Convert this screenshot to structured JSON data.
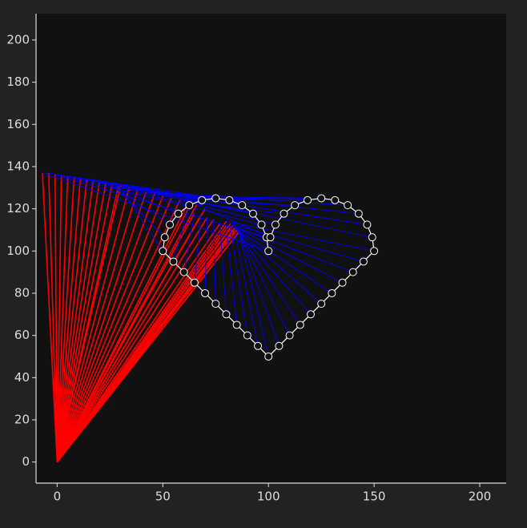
{
  "chart_data": {
    "type": "arm",
    "base": {
      "x": 0,
      "y": 0
    },
    "elbow": {
      "color": "#ff0000",
      "x": [
        -7,
        -4,
        -1,
        2,
        5,
        8,
        11,
        14,
        17,
        20,
        23,
        26,
        29,
        62,
        65,
        68,
        71,
        74,
        77,
        80,
        82,
        84,
        86,
        86,
        86,
        85,
        85,
        84,
        84,
        83,
        83,
        82,
        80,
        30,
        34,
        38,
        42,
        46,
        50,
        54,
        58,
        62,
        66,
        70
      ],
      "y": [
        137,
        137,
        136.5,
        136,
        135.5,
        135,
        134.5,
        134,
        133.5,
        133,
        132.5,
        132,
        131,
        120,
        118,
        117,
        116,
        115,
        113,
        112,
        111,
        110,
        109,
        109,
        109,
        110,
        110,
        111,
        111,
        112,
        112,
        113,
        114,
        131,
        130,
        129,
        128,
        127,
        126,
        125,
        124,
        123,
        122,
        120
      ]
    },
    "effector": {
      "color": "#0000ff",
      "path_color": "#ffffff",
      "x": [
        100,
        99.1,
        96.7,
        92.7,
        87.5,
        81.5,
        75,
        68.5,
        62.5,
        57.3,
        53.3,
        50.9,
        50,
        55,
        60,
        65,
        70,
        75,
        80,
        85,
        90,
        95,
        100,
        105,
        110,
        115,
        120,
        125,
        130,
        135,
        140,
        145,
        150,
        149.1,
        146.7,
        142.7,
        137.5,
        131.5,
        125,
        118.5,
        112.5,
        107.3,
        103.3,
        100.9
      ],
      "y": [
        100,
        106.5,
        112.5,
        117.7,
        121.7,
        124.1,
        125,
        124.1,
        121.7,
        117.7,
        112.5,
        106.5,
        100,
        95,
        90,
        85,
        80,
        75,
        70,
        65,
        60,
        55,
        50,
        55,
        60,
        65,
        70,
        75,
        80,
        85,
        90,
        95,
        100,
        106.5,
        112.5,
        117.7,
        121.7,
        124.1,
        125,
        124.1,
        121.7,
        117.7,
        112.5,
        106.5
      ]
    },
    "xlim": [
      -10,
      212.5
    ],
    "ylim": [
      -10,
      212.5
    ],
    "xticks": [
      0,
      50,
      100,
      150,
      200
    ],
    "yticks": [
      0,
      20,
      40,
      60,
      80,
      100,
      120,
      140,
      160,
      180,
      200
    ]
  }
}
